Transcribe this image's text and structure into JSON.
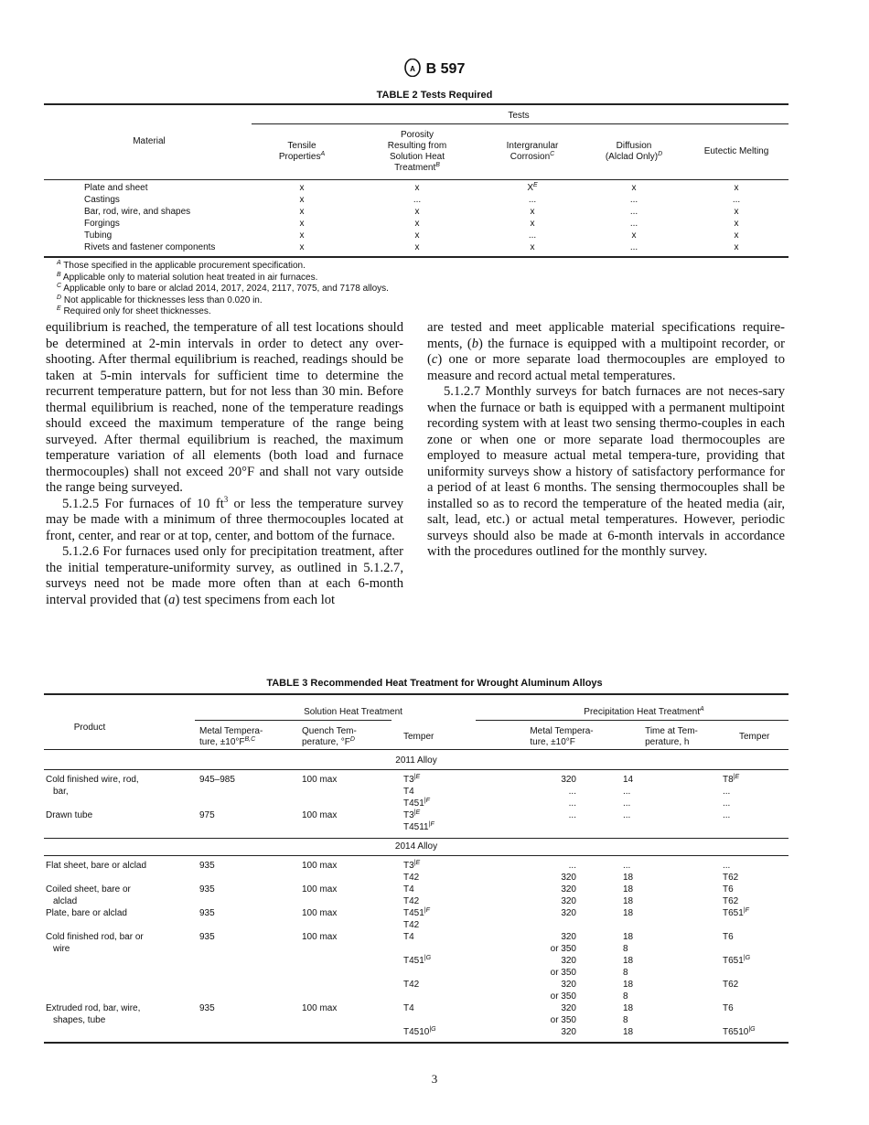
{
  "header": {
    "logo": "ASTM",
    "designation": "B 597"
  },
  "table2": {
    "title": "TABLE 2  Tests Required",
    "group_header": "Tests",
    "material_header": "Material",
    "columns": [
      {
        "lines": [
          "Tensile",
          "Properties"
        ],
        "sup": "A"
      },
      {
        "lines": [
          "Porosity",
          "Resulting from",
          "Solution Heat",
          "Treatment"
        ],
        "sup": "B"
      },
      {
        "lines": [
          "Intergranular",
          "Corrosion"
        ],
        "sup": "C"
      },
      {
        "lines": [
          "Diffusion",
          "(Alclad Only)"
        ],
        "sup": "D"
      },
      {
        "lines": [
          "Eutectic Melting"
        ],
        "sup": ""
      }
    ],
    "rows": [
      {
        "material": "Plate and sheet",
        "cells": [
          "x",
          "x",
          "X",
          "x",
          "x"
        ],
        "sups": [
          "",
          "",
          "E",
          "",
          ""
        ]
      },
      {
        "material": "Castings",
        "cells": [
          "x",
          "...",
          "...",
          "...",
          "..."
        ],
        "sups": [
          "",
          "",
          "",
          "",
          ""
        ]
      },
      {
        "material": "Bar, rod, wire, and shapes",
        "cells": [
          "x",
          "x",
          "x",
          "...",
          "x"
        ],
        "sups": [
          "",
          "",
          "",
          "",
          ""
        ]
      },
      {
        "material": "Forgings",
        "cells": [
          "x",
          "x",
          "x",
          "...",
          "x"
        ],
        "sups": [
          "",
          "",
          "",
          "",
          ""
        ]
      },
      {
        "material": "Tubing",
        "cells": [
          "x",
          "x",
          "...",
          "x",
          "x"
        ],
        "sups": [
          "",
          "",
          "",
          "",
          ""
        ]
      },
      {
        "material": "Rivets and fastener components",
        "cells": [
          "x",
          "x",
          "x",
          "...",
          "x"
        ],
        "sups": [
          "",
          "",
          "",
          "",
          ""
        ]
      }
    ],
    "footnotes": [
      {
        "mark": "A",
        "text": "Those specified in the applicable procurement specification."
      },
      {
        "mark": "B",
        "text": "Applicable only to material solution heat treated in air furnaces."
      },
      {
        "mark": "C",
        "text": "Applicable only to bare or alclad 2014, 2017, 2024, 2117, 7075, and 7178 alloys."
      },
      {
        "mark": "D",
        "text": "Not applicable for thicknesses less than 0.020 in."
      },
      {
        "mark": "E",
        "text": "Required only for sheet thicknesses."
      }
    ]
  },
  "body": {
    "left": {
      "p1": "equilibrium is reached, the temperature of all test locations should be determined at 2-min intervals in order to detect any over-shooting. After thermal equilibrium is reached, readings should be taken at 5-min intervals for sufficient time to determine the recurrent temperature pattern, but for not less than 30 min. Before thermal equilibrium is reached, none of the temperature readings should exceed the maximum temperature of the range being surveyed. After thermal equilibrium is reached, the maximum temperature variation of all elements (both load and furnace thermocouples) shall not exceed 20°F and shall not vary outside the range being surveyed.",
      "p2a": "5.1.2.5  For furnaces of 10 ft",
      "p2sup": "3",
      "p2b": " or less the temperature survey may be made with a minimum of three thermocouples located at front, center, and rear or at top, center, and bottom of the furnace.",
      "p3a": "5.1.2.6  For furnaces used only for precipitation treatment, after the initial temperature-uniformity survey, as outlined in 5.1.2.7, surveys need not be made more often than at each 6-month interval provided that (",
      "p3i": "a",
      "p3b": ") test specimens from each lot"
    },
    "right": {
      "p1a": "are tested and meet applicable material specifications require-ments, (",
      "p1i1": "b",
      "p1b": ") the furnace is equipped with a multipoint recorder, or (",
      "p1i2": "c",
      "p1c": ") one or more separate load thermocouples are employed to measure and record actual metal temperatures.",
      "p2": "5.1.2.7  Monthly surveys for batch furnaces are not neces-sary when the furnace or bath is equipped with a permanent multipoint recording system with at least two sensing thermo-couples in each zone or when one or more separate load thermocouples are employed to measure actual metal tempera-ture, providing that uniformity surveys show a history of satisfactory performance for a period of at least 6 months. The sensing thermocouples shall be installed so as to record the temperature of the heated media (air, salt, lead, etc.) or actual metal temperatures. However, periodic surveys should also be made at 6-month intervals in accordance with the procedures outlined for the monthly survey."
    }
  },
  "table3": {
    "title": "TABLE 3  Recommended Heat Treatment for Wrought Aluminum Alloys",
    "product_header": "Product",
    "solution_header": "Solution Heat Treatment",
    "precip_header": "Precipitation Heat Treatment",
    "precip_sup": "A",
    "sol_metal": [
      "Metal Tempera-",
      "ture, ±10°F"
    ],
    "sol_metal_sup": "B,C",
    "quench": [
      "Quench Tem-",
      "perature, °F"
    ],
    "quench_sup": "D",
    "temper": "Temper",
    "pre_metal": [
      "Metal Tempera-",
      "ture, ±10°F"
    ],
    "time": [
      "Time at Tem-",
      "perature, h"
    ],
    "pre_temper": "Temper",
    "sections": [
      {
        "alloy": "2011 Alloy",
        "lines": [
          [
            "Cold finished wire, rod,",
            "945–985",
            "100 max",
            "T3|E",
            "320",
            "14",
            "T8|E"
          ],
          [
            "   bar,",
            "",
            "",
            "T4",
            "...",
            "...",
            "..."
          ],
          [
            "",
            "",
            "",
            "T451|F",
            "...",
            "...",
            "..."
          ],
          [
            "Drawn tube",
            "975",
            "100 max",
            "T3|E",
            "...",
            "...",
            "..."
          ],
          [
            "",
            "",
            "",
            "T4511|F",
            "",
            "",
            ""
          ]
        ]
      },
      {
        "alloy": "2014 Alloy",
        "lines": [
          [
            "Flat sheet, bare or alclad",
            "935",
            "100 max",
            "T3|E",
            "...",
            "...",
            "..."
          ],
          [
            "",
            "",
            "",
            "T42",
            "320",
            "18",
            "T62"
          ],
          [
            "Coiled sheet, bare or",
            "935",
            "100 max",
            "T4",
            "320",
            "18",
            "T6"
          ],
          [
            "   alclad",
            "",
            "",
            "T42",
            "320",
            "18",
            "T62"
          ],
          [
            "Plate, bare or alclad",
            "935",
            "100 max",
            "T451|F",
            "320",
            "18",
            "T651|F"
          ],
          [
            "",
            "",
            "",
            "T42",
            "",
            "",
            ""
          ],
          [
            "Cold finished rod, bar or",
            "935",
            "100 max",
            "T4",
            "320",
            "18",
            "T6"
          ],
          [
            "   wire",
            "",
            "",
            "",
            "or 350",
            "8",
            ""
          ],
          [
            "",
            "",
            "",
            "T451|G",
            "320",
            "18",
            "T651|G"
          ],
          [
            "",
            "",
            "",
            "",
            "or 350",
            "8",
            ""
          ],
          [
            "",
            "",
            "",
            "T42",
            "320",
            "18",
            "T62"
          ],
          [
            "",
            "",
            "",
            "",
            "or 350",
            "8",
            ""
          ],
          [
            "Extruded rod, bar, wire,",
            "935",
            "100 max",
            "T4",
            "320",
            "18",
            "T6"
          ],
          [
            "   shapes, tube",
            "",
            "",
            "",
            "or 350",
            "8",
            ""
          ],
          [
            "",
            "",
            "",
            "T4510|G",
            "320",
            "18",
            "T6510|G"
          ]
        ]
      }
    ]
  },
  "page_number": "3"
}
